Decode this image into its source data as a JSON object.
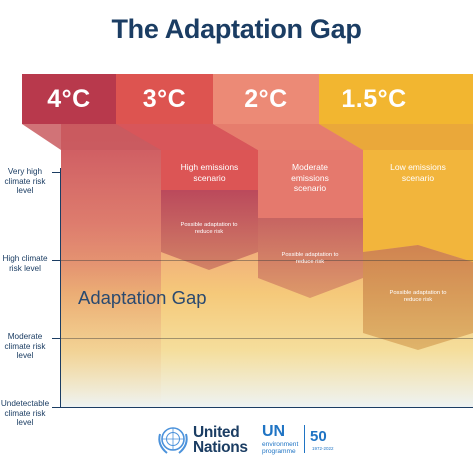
{
  "title": "The Adaptation Gap",
  "temperatures": [
    "4°C",
    "3°C",
    "2°C",
    "1.5°C"
  ],
  "y_levels": {
    "very_high": "Very high climate risk level",
    "high": "High climate risk level",
    "moderate": "Moderate climate risk level",
    "undetectable": "Undetectable climate risk level"
  },
  "scenarios": {
    "high": "High emissions scenario",
    "moderate": "Moderate emissions scenario",
    "low": "Low emissions scenario"
  },
  "adaptation_label": "Possible adaptation to reduce risk",
  "gap_label": "Adaptation Gap",
  "footer": {
    "un": "United Nations",
    "unep_big": "UN",
    "unep_small": "environment programme",
    "anniversary": "50",
    "years": "1972-2022"
  },
  "colors": {
    "title": "#1b3d63",
    "temp_4": "#b8394c",
    "temp_3": "#dd5450",
    "temp_2": "#ec8a76",
    "temp_15": "#f2b630"
  }
}
